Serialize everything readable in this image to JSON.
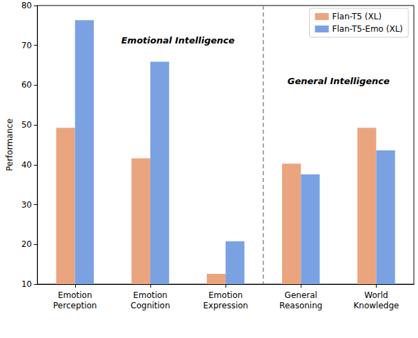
{
  "chart_data": {
    "type": "bar",
    "categories": [
      "Emotion\nPerception",
      "Emotion\nCognition",
      "Emotion\nExpression",
      "General\nReasoning",
      "World\nKnowledge"
    ],
    "series": [
      {
        "name": "Flan-T5 (XL)",
        "color": "#ea a57f",
        "values": [
          49.3,
          41.6,
          12.6,
          40.3,
          49.3
        ]
      },
      {
        "name": "Flan-T5-Emo (XL)",
        "color": "#7aa2e3",
        "values": [
          76.3,
          65.9,
          20.8,
          37.6,
          43.6
        ]
      }
    ],
    "y_label": "Performance",
    "ylim": [
      10,
      80
    ],
    "yticks": [
      10,
      20,
      30,
      40,
      50,
      60,
      70,
      80
    ],
    "grid": false,
    "legend": "upper right",
    "annotations": [
      {
        "text": "Emotional Intelligence",
        "from": "Emotion\nPerception",
        "to": "Emotion\nExpression"
      },
      {
        "text": "General Intelligence",
        "from": "General\nReasoning",
        "to": "World\nKnowledge"
      }
    ]
  }
}
